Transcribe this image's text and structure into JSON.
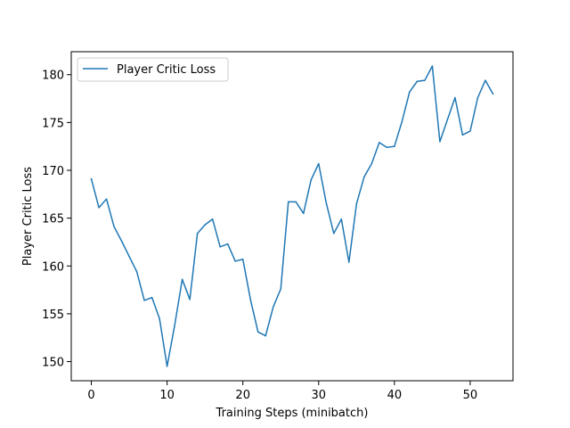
{
  "chart_data": {
    "type": "line",
    "xlabel": "Training Steps (minibatch)",
    "ylabel": "Player Critic Loss",
    "xlim": [
      -2.65,
      55.65
    ],
    "ylim": [
      148.0,
      182.4
    ],
    "xticks": [
      0,
      10,
      20,
      30,
      40,
      50
    ],
    "yticks": [
      150,
      155,
      160,
      165,
      170,
      175,
      180
    ],
    "grid": false,
    "legend_position": "top-left",
    "colors": {
      "series": "#1f77b4",
      "axes": "#000000"
    },
    "series": [
      {
        "name": "Player Critic Loss",
        "x": [
          0,
          1,
          2,
          3,
          4,
          5,
          6,
          7,
          8,
          9,
          10,
          11,
          12,
          13,
          14,
          15,
          16,
          17,
          18,
          19,
          20,
          21,
          22,
          23,
          24,
          25,
          26,
          27,
          28,
          29,
          30,
          31,
          32,
          33,
          34,
          35,
          36,
          37,
          38,
          39,
          40,
          41,
          42,
          43,
          44,
          45,
          46,
          47,
          48,
          49,
          50,
          51,
          52,
          53
        ],
        "y": [
          169.1,
          166.1,
          167.0,
          164.1,
          162.6,
          161.0,
          159.4,
          156.4,
          156.7,
          154.5,
          149.5,
          153.8,
          158.6,
          156.5,
          163.4,
          164.3,
          164.9,
          162.0,
          162.3,
          160.5,
          160.7,
          156.5,
          153.1,
          152.7,
          155.7,
          157.6,
          166.7,
          166.7,
          165.5,
          169.0,
          170.7,
          166.6,
          163.4,
          164.9,
          160.4,
          166.5,
          169.3,
          170.7,
          172.9,
          172.4,
          172.5,
          175.1,
          178.2,
          179.3,
          179.4,
          180.9,
          173.0,
          175.3,
          177.6,
          173.7,
          174.1,
          177.6,
          179.4,
          178.0
        ]
      }
    ]
  }
}
